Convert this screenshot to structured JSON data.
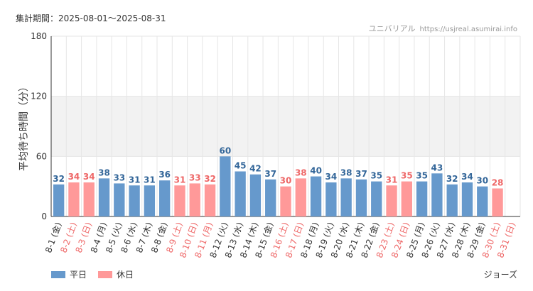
{
  "header": {
    "period": "集計期間：2025-08-01〜2025-08-31",
    "source_name": "ユニバリアル",
    "source_site": "https://usjreal.asumirai.info"
  },
  "legend": {
    "weekday_label": "平日",
    "holiday_label": "休日"
  },
  "attraction": "ジョーズ",
  "colors": {
    "weekday": "#6699cc",
    "holiday": "#ff9999",
    "weekday_text": "#336699",
    "holiday_text": "#ee6666",
    "band": "#f2f2f2",
    "grid": "#e6e6e6"
  },
  "chart_data": {
    "type": "bar",
    "ylabel": "平均待ち時間（分）",
    "ylim": [
      0,
      180
    ],
    "yticks": [
      0,
      60,
      120,
      180
    ],
    "categories": [
      "8-1 (金)",
      "8-2 (土)",
      "8-3 (日)",
      "8-4 (月)",
      "8-5 (火)",
      "8-6 (水)",
      "8-7 (木)",
      "8-8 (金)",
      "8-9 (土)",
      "8-10 (日)",
      "8-11 (月)",
      "8-12 (火)",
      "8-13 (水)",
      "8-14 (木)",
      "8-15 (金)",
      "8-16 (土)",
      "8-17 (日)",
      "8-18 (月)",
      "8-19 (火)",
      "8-20 (水)",
      "8-21 (木)",
      "8-22 (金)",
      "8-23 (土)",
      "8-24 (日)",
      "8-25 (月)",
      "8-26 (火)",
      "8-27 (水)",
      "8-28 (木)",
      "8-29 (金)",
      "8-30 (土)",
      "8-31 (日)"
    ],
    "day_type": [
      "weekday",
      "holiday",
      "holiday",
      "weekday",
      "weekday",
      "weekday",
      "weekday",
      "weekday",
      "holiday",
      "holiday",
      "holiday",
      "weekday",
      "weekday",
      "weekday",
      "weekday",
      "holiday",
      "holiday",
      "weekday",
      "weekday",
      "weekday",
      "weekday",
      "weekday",
      "holiday",
      "holiday",
      "weekday",
      "weekday",
      "weekday",
      "weekday",
      "weekday",
      "holiday",
      "holiday"
    ],
    "values": [
      32,
      34,
      34,
      38,
      33,
      31,
      31,
      36,
      31,
      33,
      32,
      60,
      45,
      42,
      37,
      30,
      38,
      40,
      34,
      38,
      37,
      35,
      31,
      35,
      35,
      43,
      32,
      34,
      30,
      28,
      null
    ]
  }
}
